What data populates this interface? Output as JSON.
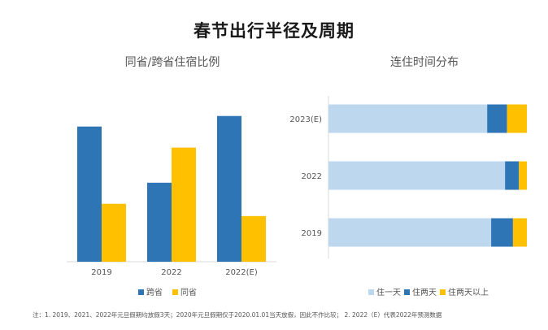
{
  "page": {
    "title": "春节出行半径及周期",
    "note": "注：1. 2019、2021、2022年元旦假期均放假3天；2020年元旦假期仅于2020.01.01当天放假，因此不作比较；  2. 2022（E）代表2022年预测数据"
  },
  "colors": {
    "blue": "#2e75b6",
    "orange": "#ffc000",
    "light_blue": "#bdd7ee",
    "axis": "#d9d9d9"
  },
  "chart_data": [
    {
      "type": "bar",
      "title": "同省/跨省住宿比例",
      "categories": [
        "2019",
        "2022",
        "2022(E)"
      ],
      "series": [
        {
          "name": "跨省",
          "values": [
            0.77,
            0.45,
            0.83
          ]
        },
        {
          "name": "同省",
          "values": [
            0.33,
            0.65,
            0.26
          ]
        }
      ],
      "ylim": [
        0,
        1.0
      ],
      "legend": "bottom"
    },
    {
      "type": "bar",
      "orientation": "horizontal",
      "stacked": true,
      "title": "连住时间分布",
      "categories": [
        "2023(E)",
        "2022",
        "2019"
      ],
      "series": [
        {
          "name": "住一天",
          "values": [
            0.8,
            0.89,
            0.82
          ]
        },
        {
          "name": "住两天",
          "values": [
            0.1,
            0.07,
            0.11
          ]
        },
        {
          "name": "住两天以上",
          "values": [
            0.1,
            0.04,
            0.07
          ]
        }
      ],
      "xlim": [
        0,
        1.0
      ],
      "legend": "bottom"
    }
  ]
}
